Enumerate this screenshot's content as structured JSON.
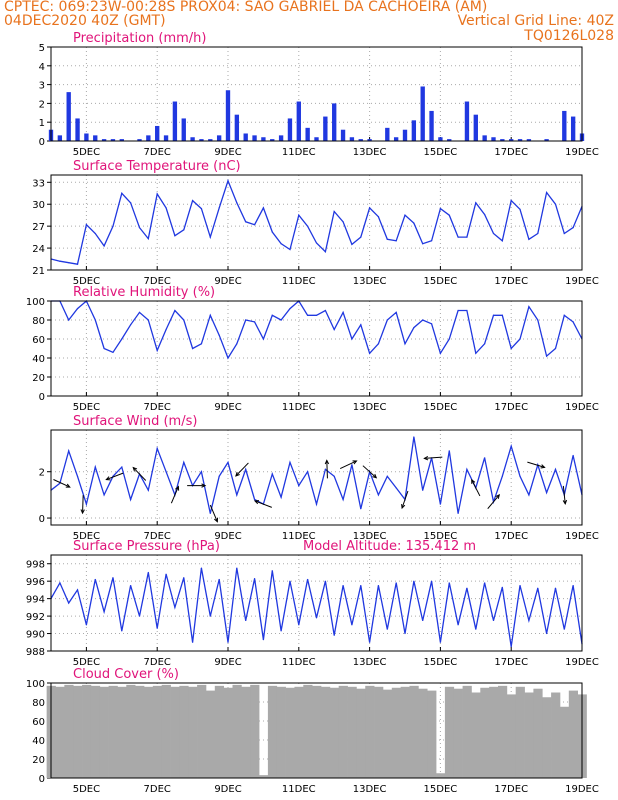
{
  "header": {
    "line1": "CPTEC:  069:23W-00:28S   PROX04: SAO GABRIEL DA CACHOEIRA (AM)",
    "line2_left": "04DEC2020 40Z (GMT)",
    "line2_right": "Vertical Grid Line: 40Z",
    "line3_right": "TQ0126L028"
  },
  "colors": {
    "header": "#e8731e",
    "title": "#e0147a",
    "series": "#2038e0",
    "cloud": "#a9a9a9"
  },
  "chart_data": [
    {
      "type": "bar",
      "title": "Precipitation (mm/h)",
      "ylim": [
        0,
        5
      ],
      "yticks": [
        "0",
        "1",
        "2",
        "3",
        "4",
        "5"
      ],
      "x_range": [
        4,
        19
      ],
      "xticks": [
        "5DEC",
        "7DEC",
        "9DEC",
        "11DEC",
        "13DEC",
        "15DEC",
        "17DEC",
        "19DEC"
      ],
      "x": [
        4.0,
        4.25,
        4.5,
        4.75,
        5.0,
        5.25,
        5.5,
        5.75,
        6.0,
        6.25,
        6.5,
        6.75,
        7.0,
        7.25,
        7.5,
        7.75,
        8.0,
        8.25,
        8.5,
        8.75,
        9.0,
        9.25,
        9.5,
        9.75,
        10.0,
        10.25,
        10.5,
        10.75,
        11.0,
        11.25,
        11.5,
        11.75,
        12.0,
        12.25,
        12.5,
        12.75,
        13.0,
        13.25,
        13.5,
        13.75,
        14.0,
        14.25,
        14.5,
        14.75,
        15.0,
        15.25,
        15.5,
        15.75,
        16.0,
        16.25,
        16.5,
        16.75,
        17.0,
        17.25,
        17.5,
        17.75,
        18.0,
        18.25,
        18.5,
        18.75,
        19.0
      ],
      "values": [
        0.6,
        0.3,
        2.6,
        1.2,
        0.4,
        0.3,
        0.1,
        0.1,
        0.1,
        0.0,
        0.1,
        0.3,
        0.8,
        0.3,
        2.1,
        1.2,
        0.2,
        0.1,
        0.1,
        0.3,
        2.7,
        1.4,
        0.4,
        0.3,
        0.2,
        0.1,
        0.3,
        1.2,
        2.1,
        0.7,
        0.2,
        1.3,
        2.0,
        0.6,
        0.2,
        0.1,
        0.1,
        0.0,
        0.7,
        0.2,
        0.6,
        1.1,
        2.9,
        1.6,
        0.2,
        0.1,
        0.0,
        2.1,
        1.4,
        0.3,
        0.2,
        0.1,
        0.1,
        0.1,
        0.1,
        0.0,
        0.1,
        0.0,
        1.6,
        1.3,
        0.4
      ],
      "color": "#2038e0"
    },
    {
      "type": "line",
      "title": "Surface Temperature (nC)",
      "ylim": [
        21,
        34
      ],
      "yticks": [
        "21",
        "24",
        "27",
        "30",
        "33"
      ],
      "x_range": [
        4,
        19
      ],
      "xticks": [
        "5DEC",
        "7DEC",
        "9DEC",
        "11DEC",
        "13DEC",
        "15DEC",
        "17DEC",
        "19DEC"
      ],
      "x": [
        4.0,
        4.25,
        4.5,
        4.75,
        5.0,
        5.25,
        5.5,
        5.75,
        6.0,
        6.25,
        6.5,
        6.75,
        7.0,
        7.25,
        7.5,
        7.75,
        8.0,
        8.25,
        8.5,
        8.75,
        9.0,
        9.25,
        9.5,
        9.75,
        10.0,
        10.25,
        10.5,
        10.75,
        11.0,
        11.25,
        11.5,
        11.75,
        12.0,
        12.25,
        12.5,
        12.75,
        13.0,
        13.25,
        13.5,
        13.75,
        14.0,
        14.25,
        14.5,
        14.75,
        15.0,
        15.25,
        15.5,
        15.75,
        16.0,
        16.25,
        16.5,
        16.75,
        17.0,
        17.25,
        17.5,
        17.75,
        18.0,
        18.25,
        18.5,
        18.75,
        19.0
      ],
      "values": [
        22.5,
        22.2,
        22.0,
        21.8,
        27.2,
        26.0,
        24.3,
        27.0,
        31.5,
        30.2,
        26.8,
        25.3,
        31.4,
        29.5,
        25.7,
        26.5,
        30.5,
        29.4,
        25.5,
        29.5,
        33.2,
        30.2,
        27.6,
        27.2,
        29.5,
        26.2,
        24.6,
        23.8,
        28.5,
        27.0,
        24.7,
        23.5,
        29.0,
        27.6,
        24.5,
        25.5,
        29.5,
        28.3,
        25.2,
        25.0,
        28.5,
        27.4,
        24.6,
        25.0,
        29.4,
        28.5,
        25.5,
        25.5,
        30.2,
        28.6,
        26.0,
        25.0,
        30.5,
        29.3,
        25.2,
        26.0,
        31.6,
        30.0,
        26.0,
        26.8,
        29.7
      ],
      "color": "#2038e0"
    },
    {
      "type": "line",
      "title": "Relative Humidity (%)",
      "ylim": [
        0,
        100
      ],
      "yticks": [
        "0",
        "20",
        "40",
        "60",
        "80",
        "100"
      ],
      "x_range": [
        4,
        19
      ],
      "xticks": [
        "5DEC",
        "7DEC",
        "9DEC",
        "11DEC",
        "13DEC",
        "15DEC",
        "17DEC",
        "19DEC"
      ],
      "x": [
        4.0,
        4.25,
        4.5,
        4.75,
        5.0,
        5.25,
        5.5,
        5.75,
        6.0,
        6.25,
        6.5,
        6.75,
        7.0,
        7.25,
        7.5,
        7.75,
        8.0,
        8.25,
        8.5,
        8.75,
        9.0,
        9.25,
        9.5,
        9.75,
        10.0,
        10.25,
        10.5,
        10.75,
        11.0,
        11.25,
        11.5,
        11.75,
        12.0,
        12.25,
        12.5,
        12.75,
        13.0,
        13.25,
        13.5,
        13.75,
        14.0,
        14.25,
        14.5,
        14.75,
        15.0,
        15.25,
        15.5,
        15.75,
        16.0,
        16.25,
        16.5,
        16.75,
        17.0,
        17.25,
        17.5,
        17.75,
        18.0,
        18.25,
        18.5,
        18.75,
        19.0
      ],
      "values": [
        100,
        100,
        80,
        92,
        100,
        80,
        50,
        46,
        60,
        75,
        88,
        80,
        48,
        70,
        90,
        80,
        50,
        55,
        85,
        64,
        40,
        55,
        80,
        78,
        60,
        85,
        80,
        92,
        100,
        85,
        85,
        90,
        70,
        88,
        60,
        75,
        45,
        55,
        80,
        88,
        55,
        72,
        80,
        76,
        45,
        60,
        90,
        90,
        45,
        55,
        85,
        85,
        50,
        60,
        94,
        80,
        42,
        50,
        85,
        78,
        60
      ],
      "color": "#2038e0"
    },
    {
      "type": "line",
      "title": "Surface Wind (m/s)",
      "ylim": [
        -0.3,
        3.8
      ],
      "yticks": [
        "0",
        "2"
      ],
      "x_range": [
        4,
        19
      ],
      "xticks": [
        "5DEC",
        "7DEC",
        "9DEC",
        "11DEC",
        "13DEC",
        "15DEC",
        "17DEC",
        "19DEC"
      ],
      "x": [
        4.0,
        4.25,
        4.5,
        4.75,
        5.0,
        5.25,
        5.5,
        5.75,
        6.0,
        6.25,
        6.5,
        6.75,
        7.0,
        7.25,
        7.5,
        7.75,
        8.0,
        8.25,
        8.5,
        8.75,
        9.0,
        9.25,
        9.5,
        9.75,
        10.0,
        10.25,
        10.5,
        10.75,
        11.0,
        11.25,
        11.5,
        11.75,
        12.0,
        12.25,
        12.5,
        12.75,
        13.0,
        13.25,
        13.5,
        13.75,
        14.0,
        14.25,
        14.5,
        14.75,
        15.0,
        15.25,
        15.5,
        15.75,
        16.0,
        16.25,
        16.5,
        16.75,
        17.0,
        17.25,
        17.5,
        17.75,
        18.0,
        18.25,
        18.5,
        18.75,
        19.0
      ],
      "values": [
        1.2,
        1.5,
        2.9,
        1.8,
        0.6,
        2.2,
        1.0,
        1.8,
        2.2,
        0.8,
        1.9,
        1.2,
        3.0,
        2.0,
        1.0,
        2.4,
        1.4,
        2.0,
        0.2,
        1.8,
        2.4,
        1.0,
        2.1,
        0.8,
        0.6,
        1.9,
        0.9,
        2.4,
        1.4,
        2.0,
        0.6,
        2.1,
        1.8,
        0.8,
        2.3,
        0.4,
        2.0,
        1.0,
        1.8,
        1.3,
        0.8,
        3.5,
        1.2,
        2.6,
        0.6,
        2.9,
        0.2,
        2.1,
        1.3,
        2.6,
        0.7,
        1.8,
        3.1,
        1.8,
        1.0,
        2.3,
        1.1,
        2.1,
        1.0,
        2.7,
        1.0
      ],
      "vectors_at": [
        4.3,
        4.9,
        5.8,
        6.5,
        7.5,
        8.1,
        8.6,
        9.4,
        10.0,
        11.8,
        12.4,
        13.0,
        14.0,
        14.8,
        16.0,
        16.5,
        17.7,
        18.5
      ],
      "color": "#2038e0"
    },
    {
      "type": "line",
      "title": "Surface Pressure (hPa)",
      "annotation": "Model Altitude: 135.412 m",
      "ylim": [
        988,
        999
      ],
      "yticks": [
        "988",
        "990",
        "992",
        "994",
        "996",
        "998"
      ],
      "x_range": [
        4,
        19
      ],
      "xticks": [
        "5DEC",
        "7DEC",
        "9DEC",
        "11DEC",
        "13DEC",
        "15DEC",
        "17DEC",
        "19DEC"
      ],
      "x": [
        4.0,
        4.25,
        4.5,
        4.75,
        5.0,
        5.25,
        5.5,
        5.75,
        6.0,
        6.25,
        6.5,
        6.75,
        7.0,
        7.25,
        7.5,
        7.75,
        8.0,
        8.25,
        8.5,
        8.75,
        9.0,
        9.25,
        9.5,
        9.75,
        10.0,
        10.25,
        10.5,
        10.75,
        11.0,
        11.25,
        11.5,
        11.75,
        12.0,
        12.25,
        12.5,
        12.75,
        13.0,
        13.25,
        13.5,
        13.75,
        14.0,
        14.25,
        14.5,
        14.75,
        15.0,
        15.25,
        15.5,
        15.75,
        16.0,
        16.25,
        16.5,
        16.75,
        17.0,
        17.25,
        17.5,
        17.75,
        18.0,
        18.25,
        18.5,
        18.75,
        19.0
      ],
      "values": [
        994.0,
        995.8,
        993.5,
        995.0,
        991.0,
        996.2,
        992.5,
        996.4,
        990.3,
        995.5,
        992.0,
        997.0,
        990.6,
        996.8,
        993.0,
        996.4,
        989.0,
        997.5,
        992.0,
        996.2,
        989.0,
        997.5,
        991.5,
        996.3,
        989.3,
        997.2,
        990.3,
        996.0,
        991.0,
        996.2,
        991.8,
        996.0,
        989.8,
        995.5,
        991.0,
        995.5,
        989.0,
        995.5,
        990.5,
        995.8,
        990.0,
        996.0,
        991.5,
        996.0,
        989.0,
        995.8,
        991.0,
        995.2,
        990.5,
        995.8,
        991.5,
        995.3,
        988.5,
        995.5,
        991.5,
        995.2,
        990.0,
        995.2,
        990.5,
        995.5,
        988.8
      ],
      "color": "#2038e0"
    },
    {
      "type": "area",
      "title": "Cloud Cover (%)",
      "ylim": [
        0,
        100
      ],
      "yticks": [
        "0",
        "20",
        "40",
        "60",
        "80",
        "100"
      ],
      "x_range": [
        4,
        19
      ],
      "xticks": [
        "5DEC",
        "7DEC",
        "9DEC",
        "11DEC",
        "13DEC",
        "15DEC",
        "17DEC",
        "19DEC"
      ],
      "x": [
        4.0,
        4.25,
        4.5,
        4.75,
        5.0,
        5.25,
        5.5,
        5.75,
        6.0,
        6.25,
        6.5,
        6.75,
        7.0,
        7.25,
        7.5,
        7.75,
        8.0,
        8.25,
        8.5,
        8.75,
        9.0,
        9.25,
        9.5,
        9.75,
        10.0,
        10.25,
        10.5,
        10.75,
        11.0,
        11.25,
        11.5,
        11.75,
        12.0,
        12.25,
        12.5,
        12.75,
        13.0,
        13.25,
        13.5,
        13.75,
        14.0,
        14.25,
        14.5,
        14.75,
        15.0,
        15.25,
        15.5,
        15.75,
        16.0,
        16.25,
        16.5,
        16.75,
        17.0,
        17.25,
        17.5,
        17.75,
        18.0,
        18.25,
        18.5,
        18.75,
        19.0
      ],
      "values": [
        97,
        96,
        98,
        97,
        98,
        97,
        96,
        97,
        96,
        98,
        97,
        96,
        97,
        98,
        96,
        97,
        96,
        98,
        92,
        97,
        95,
        98,
        96,
        98,
        3,
        97,
        96,
        95,
        96,
        98,
        97,
        96,
        95,
        97,
        96,
        94,
        97,
        96,
        93,
        95,
        96,
        97,
        94,
        92,
        5,
        96,
        94,
        97,
        90,
        95,
        96,
        97,
        88,
        96,
        90,
        94,
        85,
        90,
        75,
        92,
        88
      ],
      "color": "#a9a9a9"
    }
  ]
}
